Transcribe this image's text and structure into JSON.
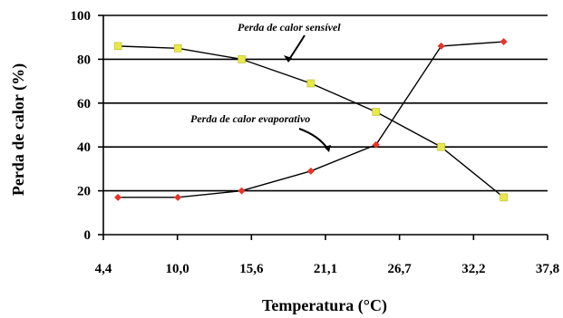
{
  "chart_data": {
    "type": "line",
    "xlabel": "Temperatura (°C)",
    "ylabel": "Perda de calor (%)",
    "x_ticks": [
      "4,4",
      "10,0",
      "15,6",
      "21,1",
      "26,7",
      "32,2",
      "37,8"
    ],
    "y_ticks": [
      "0",
      "20",
      "40",
      "60",
      "80",
      "100"
    ],
    "xlim": [
      4.4,
      37.8
    ],
    "ylim": [
      0,
      100
    ],
    "grid": "horizontal",
    "series": [
      {
        "name": "Perda de calor sensível",
        "color": "#e8e84a",
        "marker": "square",
        "x": [
          5.5,
          10.0,
          14.8,
          20.0,
          24.9,
          29.8,
          34.5
        ],
        "y": [
          86,
          85,
          80,
          69,
          56,
          40,
          17
        ]
      },
      {
        "name": "Perda de calor evaporativo",
        "color": "#e8332a",
        "marker": "diamond",
        "x": [
          5.5,
          10.0,
          14.8,
          20.0,
          24.9,
          29.8,
          34.5
        ],
        "y": [
          17,
          17,
          20,
          29,
          41,
          86,
          88
        ]
      }
    ],
    "annotations": [
      {
        "text": "Perda de calor sensível",
        "series": 0
      },
      {
        "text": "Perda de calor evaporativo",
        "series": 1
      }
    ]
  }
}
